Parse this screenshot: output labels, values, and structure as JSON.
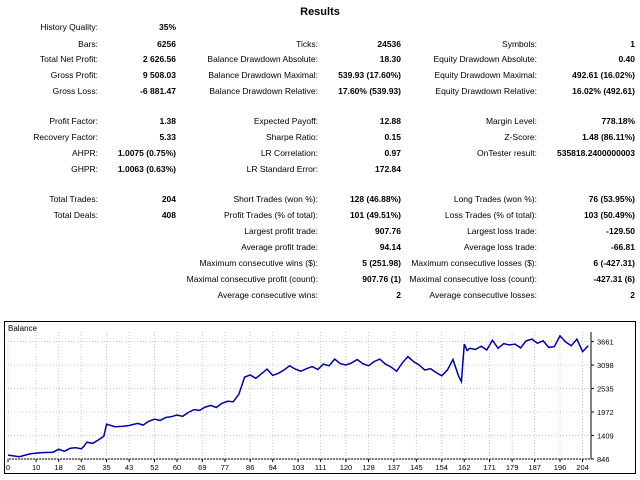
{
  "title": "Results",
  "stats": [
    [
      [
        "History Quality:",
        "35%"
      ],
      null,
      null
    ],
    [
      [
        "Bars:",
        "6256"
      ],
      [
        "Ticks:",
        "24536"
      ],
      [
        "Symbols:",
        "1"
      ]
    ],
    [
      [
        "Total Net Profit:",
        "2 626.56"
      ],
      [
        "Balance Drawdown Absolute:",
        "18.30"
      ],
      [
        "Equity Drawdown Absolute:",
        "0.40"
      ]
    ],
    [
      [
        "Gross Profit:",
        "9 508.03"
      ],
      [
        "Balance Drawdown Maximal:",
        "539.93 (17.60%)"
      ],
      [
        "Equity Drawdown Maximal:",
        "492.61 (16.02%)"
      ]
    ],
    [
      [
        "Gross Loss:",
        "-6 881.47"
      ],
      [
        "Balance Drawdown Relative:",
        "17.60% (539.93)"
      ],
      [
        "Equity Drawdown Relative:",
        "16.02% (492.61)"
      ]
    ],
    null,
    [
      [
        "Profit Factor:",
        "1.38"
      ],
      [
        "Expected Payoff:",
        "12.88"
      ],
      [
        "Margin Level:",
        "778.18%"
      ]
    ],
    [
      [
        "Recovery Factor:",
        "5.33"
      ],
      [
        "Sharpe Ratio:",
        "0.15"
      ],
      [
        "Z-Score:",
        "1.48 (86.11%)"
      ]
    ],
    [
      [
        "AHPR:",
        "1.0075 (0.75%)"
      ],
      [
        "LR Correlation:",
        "0.97"
      ],
      [
        "OnTester result:",
        "535818.2400000003"
      ]
    ],
    [
      [
        "GHPR:",
        "1.0063 (0.63%)"
      ],
      [
        "LR Standard Error:",
        "172.84"
      ],
      null
    ],
    null,
    [
      [
        "Total Trades:",
        "204"
      ],
      [
        "Short Trades (won %):",
        "128 (46.88%)"
      ],
      [
        "Long Trades (won %):",
        "76 (53.95%)"
      ]
    ],
    [
      [
        "Total Deals:",
        "408"
      ],
      [
        "Profit Trades (% of total):",
        "101 (49.51%)"
      ],
      [
        "Loss Trades (% of total):",
        "103 (50.49%)"
      ]
    ],
    [
      null,
      [
        "Largest profit trade:",
        "907.76"
      ],
      [
        "Largest loss trade:",
        "-129.50"
      ]
    ],
    [
      null,
      [
        "Average profit trade:",
        "94.14"
      ],
      [
        "Average loss trade:",
        "-66.81"
      ]
    ],
    [
      null,
      [
        "Maximum consecutive wins ($):",
        "5 (251.98)"
      ],
      [
        "Maximum consecutive losses ($):",
        "6 (-427.31)"
      ]
    ],
    [
      null,
      [
        "Maximal consecutive profit (count):",
        "907.76 (1)"
      ],
      [
        "Maximal consecutive loss (count):",
        "-427.31 (6)"
      ]
    ],
    [
      null,
      [
        "Average consecutive wins:",
        "2"
      ],
      [
        "Average consecutive losses:",
        "2"
      ]
    ]
  ],
  "chart_data": {
    "type": "line",
    "title": "Balance",
    "line_color": "#0000a0",
    "x_ticks": [
      "0",
      "10",
      "18",
      "26",
      "35",
      "43",
      "52",
      "60",
      "69",
      "77",
      "86",
      "94",
      "103",
      "111",
      "120",
      "128",
      "137",
      "145",
      "154",
      "162",
      "171",
      "179",
      "187",
      "196",
      "204"
    ],
    "y_ticks": [
      "846",
      "1409",
      "1972",
      "2535",
      "3098",
      "3661"
    ],
    "xlim": [
      0,
      207
    ],
    "ylim": [
      846,
      3890
    ],
    "x": [
      0,
      4,
      8,
      12,
      16,
      18,
      20,
      22,
      24,
      26,
      27,
      28,
      30,
      32,
      34,
      35,
      38,
      41,
      43,
      46,
      48,
      50,
      52,
      54,
      56,
      58,
      60,
      62,
      64,
      66,
      68,
      70,
      72,
      74,
      76,
      78,
      80,
      82,
      84,
      86,
      88,
      90,
      92,
      94,
      96,
      98,
      100,
      102,
      104,
      106,
      108,
      110,
      112,
      114,
      116,
      118,
      120,
      122,
      124,
      126,
      128,
      130,
      132,
      134,
      136,
      138,
      140,
      142,
      144,
      146,
      148,
      150,
      152,
      154,
      156,
      158,
      160,
      161,
      162,
      163,
      164,
      166,
      168,
      170,
      172,
      174,
      176,
      178,
      180,
      182,
      184,
      186,
      188,
      190,
      192,
      194,
      196,
      198,
      200,
      202,
      204,
      206
    ],
    "y": [
      940,
      900,
      970,
      1000,
      1010,
      1080,
      1030,
      1100,
      1120,
      1090,
      1150,
      1250,
      1220,
      1300,
      1390,
      1680,
      1620,
      1630,
      1650,
      1700,
      1660,
      1750,
      1800,
      1770,
      1840,
      1860,
      1900,
      1870,
      1960,
      2030,
      2010,
      2090,
      2130,
      2080,
      2180,
      2230,
      2220,
      2400,
      2810,
      2860,
      2780,
      2890,
      3000,
      2850,
      2900,
      2980,
      3080,
      3000,
      2950,
      3010,
      3060,
      2990,
      3120,
      3080,
      3240,
      3130,
      3100,
      3150,
      3230,
      3130,
      3080,
      3180,
      3240,
      3120,
      3050,
      2950,
      3150,
      3300,
      3180,
      3100,
      2980,
      3010,
      2920,
      2840,
      2980,
      3230,
      2830,
      2700,
      3600,
      3450,
      3500,
      3470,
      3550,
      3460,
      3690,
      3500,
      3610,
      3580,
      3600,
      3510,
      3680,
      3720,
      3620,
      3680,
      3520,
      3540,
      3800,
      3650,
      3560,
      3720,
      3420,
      3560
    ]
  }
}
